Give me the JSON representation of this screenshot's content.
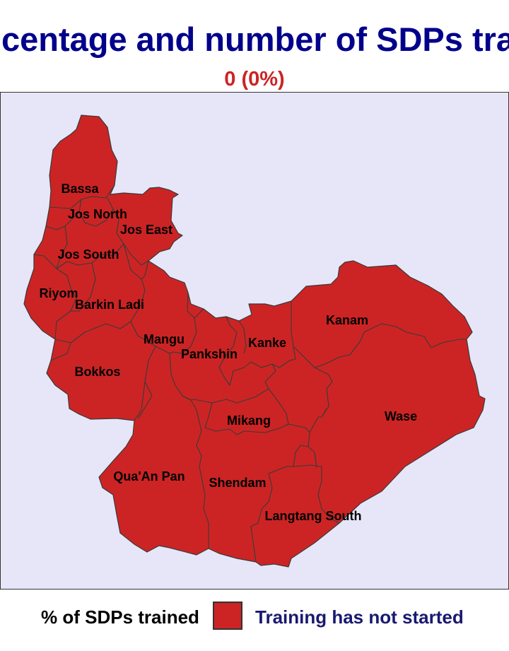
{
  "title": "centage and number of SDPs tra",
  "subtitle": "0 (0%)",
  "colors": {
    "title": "#00008b",
    "subtitle": "#cc2424",
    "region_fill": "#cc2424",
    "map_background": "#e6e6f8",
    "legend_label": "#191970"
  },
  "regions": [
    {
      "name": "Bassa",
      "status": "Training has not started"
    },
    {
      "name": "Jos North",
      "status": "Training has not started"
    },
    {
      "name": "Jos East",
      "status": "Training has not started"
    },
    {
      "name": "Jos South",
      "status": "Training has not started"
    },
    {
      "name": "Riyom",
      "status": "Training has not started"
    },
    {
      "name": "Barkin Ladi",
      "status": "Training has not started"
    },
    {
      "name": "Mangu",
      "status": "Training has not started"
    },
    {
      "name": "Pankshin",
      "status": "Training has not started"
    },
    {
      "name": "Kanke",
      "status": "Training has not started"
    },
    {
      "name": "Kanam",
      "status": "Training has not started"
    },
    {
      "name": "Bokkos",
      "status": "Training has not started"
    },
    {
      "name": "Wase",
      "status": "Training has not started"
    },
    {
      "name": "Mikang",
      "status": "Training has not started"
    },
    {
      "name": "Qua'An Pan",
      "status": "Training has not started"
    },
    {
      "name": "Shendam",
      "status": "Training has not started"
    },
    {
      "name": "Langtang South",
      "status": "Training has not started"
    }
  ],
  "legend": {
    "title": "% of SDPs trained",
    "items": [
      {
        "label": "Training has not started",
        "color": "#cc2424"
      }
    ]
  }
}
